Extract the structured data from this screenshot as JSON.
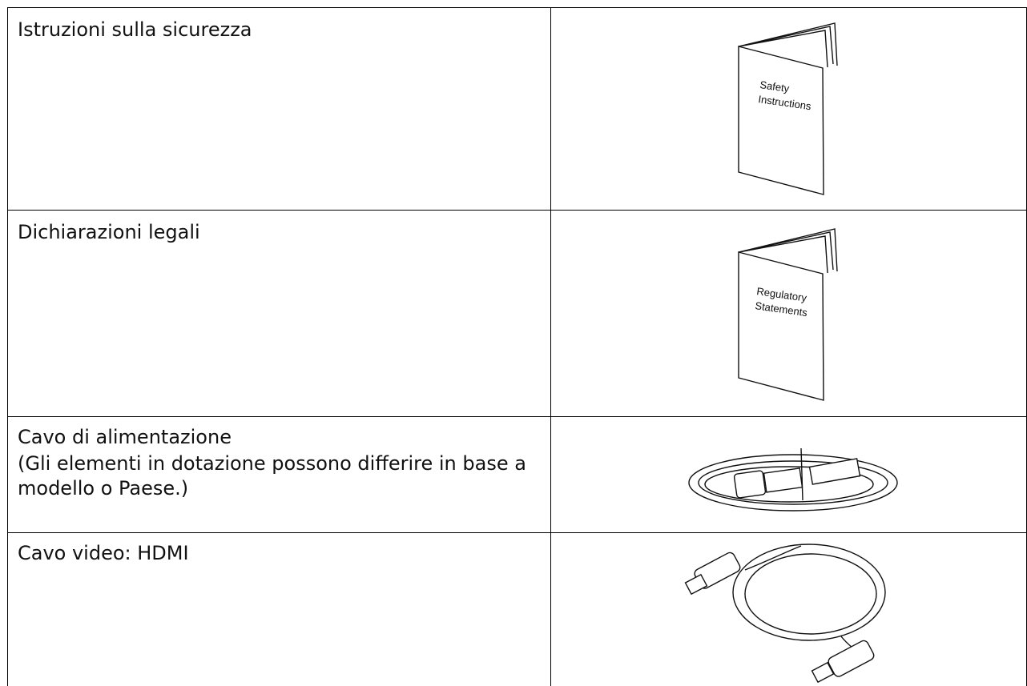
{
  "table": {
    "rows": [
      {
        "lines": [
          "Istruzioni sulla sicurezza"
        ],
        "image_text": [
          "Safety",
          "Instructions"
        ]
      },
      {
        "lines": [
          "Dichiarazioni legali"
        ],
        "image_text": [
          "Regulatory",
          "Statements"
        ]
      },
      {
        "lines": [
          "Cavo di alimentazione",
          "(Gli elementi in dotazione possono differire in base a modello o Paese.)"
        ]
      },
      {
        "lines": [
          "Cavo video: HDMI"
        ]
      }
    ]
  }
}
